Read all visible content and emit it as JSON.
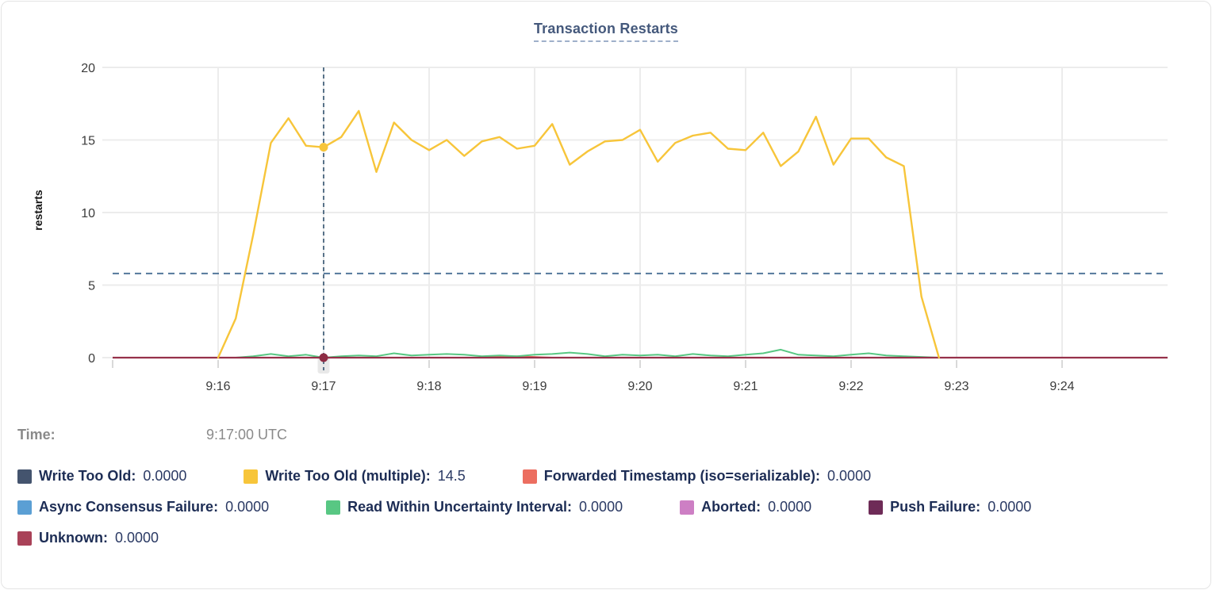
{
  "title": {
    "text": "Transaction Restarts"
  },
  "time_row": {
    "label": "Time:",
    "value": "9:17:00 UTC"
  },
  "axes": {
    "ylabel": "restarts",
    "yticks": [
      0,
      5,
      10,
      15,
      20
    ],
    "xtick_labels": [
      "9:16",
      "9:17",
      "9:18",
      "9:19",
      "9:20",
      "9:21",
      "9:22",
      "9:23",
      "9:24"
    ]
  },
  "chart_data": {
    "type": "line",
    "title": "Transaction Restarts",
    "ylabel": "restarts",
    "ylim": [
      0,
      20
    ],
    "x_window": [
      "9:15:00",
      "9:25:00"
    ],
    "x_tick_labels": [
      "9:16",
      "9:17",
      "9:18",
      "9:19",
      "9:20",
      "9:21",
      "9:22",
      "9:23",
      "9:24"
    ],
    "grid": true,
    "reference_line_value": 5.8,
    "hover": {
      "time_label": "9:17:00 UTC",
      "t_offset_s": 120,
      "points": [
        {
          "series": "Write Too Old (multiple)",
          "value": 14.5,
          "color": "#f7c53a"
        },
        {
          "series": "Unknown",
          "value": 0,
          "color": "#8e2c44"
        }
      ]
    },
    "series": [
      {
        "name": "Write Too Old",
        "color": "#44546e",
        "start_offset_s": 60,
        "step_s": 10,
        "flat_value": 0,
        "values": []
      },
      {
        "name": "Write Too Old (multiple)",
        "color": "#f7c53a",
        "width": 2.4,
        "start_offset_s": 60,
        "step_s": 10,
        "values": [
          0,
          2.7,
          8.5,
          14.8,
          16.5,
          14.6,
          14.5,
          15.2,
          17.0,
          12.8,
          16.2,
          15.0,
          14.3,
          15.0,
          13.9,
          14.9,
          15.2,
          14.4,
          14.6,
          16.1,
          13.3,
          14.2,
          14.9,
          15.0,
          15.7,
          13.5,
          14.8,
          15.3,
          15.5,
          14.4,
          14.3,
          15.5,
          13.2,
          14.2,
          16.6,
          13.3,
          15.1,
          15.1,
          13.8,
          13.2,
          4.2,
          0
        ]
      },
      {
        "name": "Forwarded Timestamp (iso=serializable)",
        "color": "#ec6e60",
        "width": 2,
        "start_offset_s": 210,
        "step_s": 10,
        "values": [
          0,
          0.06,
          0.1,
          0.05,
          0
        ]
      },
      {
        "name": "Async Consensus Failure",
        "color": "#5b9fd4",
        "start_offset_s": 60,
        "step_s": 10,
        "flat_value": 0,
        "values": []
      },
      {
        "name": "Read Within Uncertainty Interval",
        "color": "#58c783",
        "width": 2,
        "start_offset_s": 60,
        "step_s": 10,
        "values": [
          0,
          0,
          0.1,
          0.25,
          0.1,
          0.2,
          0,
          0.1,
          0.15,
          0.1,
          0.3,
          0.15,
          0.2,
          0.25,
          0.2,
          0.1,
          0.15,
          0.1,
          0.2,
          0.25,
          0.35,
          0.25,
          0.1,
          0.2,
          0.15,
          0.2,
          0.1,
          0.25,
          0.15,
          0.1,
          0.2,
          0.3,
          0.55,
          0.2,
          0.15,
          0.1,
          0.2,
          0.3,
          0.15,
          0.1,
          0.05,
          0
        ]
      },
      {
        "name": "Aborted",
        "color": "#cd7fc4",
        "start_offset_s": 60,
        "step_s": 10,
        "flat_value": 0,
        "values": []
      },
      {
        "name": "Push Failure",
        "color": "#6e2b57",
        "start_offset_s": 60,
        "step_s": 10,
        "flat_value": 0,
        "values": []
      },
      {
        "name": "Unknown",
        "color": "#a94258",
        "line_color": "#96314a",
        "width": 2.2,
        "span": "full",
        "flat_value": 0,
        "values": []
      }
    ]
  },
  "legend": {
    "rows": [
      [
        {
          "label": "Write Too Old:",
          "value": "0.0000",
          "color": "#44546e"
        },
        {
          "label": "Write Too Old (multiple):",
          "value": "14.5",
          "color": "#f7c53a"
        },
        {
          "label": "Forwarded Timestamp (iso=serializable):",
          "value": "0.0000",
          "color": "#ec6e60"
        }
      ],
      [
        {
          "label": "Async Consensus Failure:",
          "value": "0.0000",
          "color": "#5b9fd4"
        },
        {
          "label": "Read Within Uncertainty Interval:",
          "value": "0.0000",
          "color": "#58c783"
        },
        {
          "label": "Aborted:",
          "value": "0.0000",
          "color": "#cd7fc4"
        },
        {
          "label": "Push Failure:",
          "value": "0.0000",
          "color": "#6e2b57"
        }
      ],
      [
        {
          "label": "Unknown:",
          "value": "0.0000",
          "color": "#a94258"
        }
      ]
    ]
  },
  "colors": {
    "grid": "#ececec",
    "tick_text": "#3b3b3b",
    "crosshair": "#33536f",
    "reference_line": "#54789b",
    "highlight_band": "#e8e8e8",
    "title": "#45597c",
    "legend_label": "#1d2d55",
    "legend_value": "#2b3a64",
    "time_text": "#8a8a8a"
  }
}
